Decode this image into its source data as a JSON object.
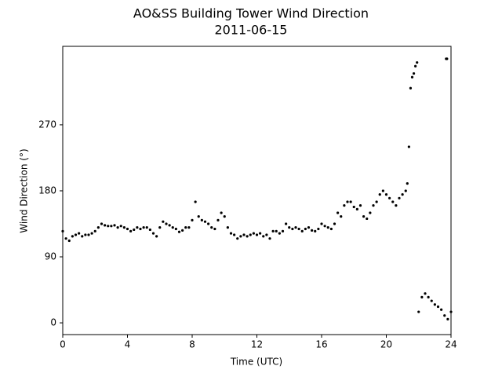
{
  "chart_data": {
    "type": "scatter",
    "title": "AO&SS Building Tower Wind Direction",
    "subtitle": "2011-06-15",
    "x_label": "Time (UTC)",
    "y_label": "Wind Direction (°)",
    "color": "#000000",
    "xlim": [
      0,
      24
    ],
    "xticks": [
      0,
      4,
      8,
      12,
      16,
      20,
      24
    ],
    "ylim": [
      -16,
      377
    ],
    "yticks": [
      0,
      90,
      180,
      270
    ],
    "grid": false,
    "x": [
      0,
      0.2,
      0.4,
      0.6,
      0.8,
      1.0,
      1.2,
      1.4,
      1.6,
      1.8,
      2.0,
      2.2,
      2.4,
      2.6,
      2.8,
      3.0,
      3.2,
      3.4,
      3.6,
      3.8,
      4.0,
      4.2,
      4.4,
      4.6,
      4.8,
      5.0,
      5.2,
      5.4,
      5.6,
      5.8,
      6.0,
      6.2,
      6.4,
      6.6,
      6.8,
      7.0,
      7.2,
      7.4,
      7.6,
      7.8,
      8.0,
      8.2,
      8.4,
      8.6,
      8.8,
      9.0,
      9.2,
      9.4,
      9.6,
      9.8,
      10.0,
      10.2,
      10.4,
      10.6,
      10.8,
      11.0,
      11.2,
      11.4,
      11.6,
      11.8,
      12.0,
      12.2,
      12.4,
      12.6,
      12.8,
      13.0,
      13.2,
      13.4,
      13.6,
      13.8,
      14.0,
      14.2,
      14.4,
      14.6,
      14.8,
      15.0,
      15.2,
      15.4,
      15.6,
      15.8,
      16.0,
      16.2,
      16.4,
      16.6,
      16.8,
      17.0,
      17.2,
      17.4,
      17.6,
      17.8,
      18.0,
      18.2,
      18.4,
      18.6,
      18.8,
      19.0,
      19.2,
      19.4,
      19.6,
      19.8,
      20.0,
      20.2,
      20.4,
      20.6,
      20.8,
      21.0,
      21.2,
      21.3,
      21.4,
      21.5,
      21.6,
      21.7,
      21.8,
      21.9,
      22.0,
      22.2,
      22.4,
      22.6,
      22.8,
      23.0,
      23.2,
      23.4,
      23.6,
      23.7,
      23.75,
      23.8,
      24.0
    ],
    "values": [
      125,
      115,
      112,
      118,
      120,
      122,
      118,
      120,
      120,
      122,
      125,
      130,
      135,
      133,
      132,
      132,
      133,
      130,
      132,
      130,
      128,
      125,
      127,
      130,
      128,
      130,
      130,
      127,
      122,
      118,
      130,
      138,
      135,
      133,
      130,
      128,
      124,
      126,
      130,
      130,
      140,
      165,
      145,
      140,
      138,
      135,
      130,
      128,
      140,
      150,
      145,
      130,
      122,
      120,
      115,
      118,
      120,
      118,
      120,
      122,
      120,
      122,
      118,
      120,
      115,
      125,
      125,
      122,
      125,
      135,
      130,
      128,
      130,
      128,
      125,
      128,
      130,
      126,
      125,
      128,
      135,
      132,
      130,
      128,
      135,
      150,
      145,
      160,
      165,
      165,
      158,
      155,
      160,
      145,
      142,
      150,
      160,
      165,
      175,
      180,
      175,
      170,
      165,
      160,
      170,
      175,
      180,
      190,
      240,
      320,
      335,
      340,
      350,
      355,
      15,
      35,
      40,
      35,
      30,
      25,
      22,
      18,
      10,
      360,
      360,
      5,
      15
    ]
  }
}
